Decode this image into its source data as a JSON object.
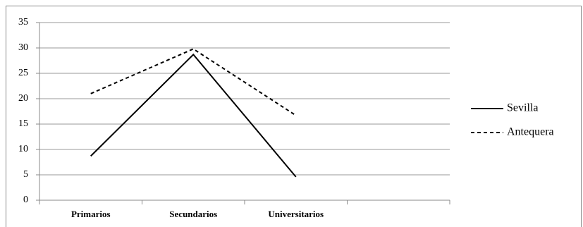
{
  "chart_data": {
    "type": "line",
    "categories": [
      "Primarios",
      "Secundarios",
      "Universitarios",
      null
    ],
    "series": [
      {
        "name": "Sevilla",
        "color": "#000000",
        "line_style": "solid",
        "values": [
          8.7,
          28.7,
          4.6,
          null
        ]
      },
      {
        "name": "Antequera",
        "color": "#000000",
        "line_style": "dashed",
        "values": [
          21,
          29.8,
          16.7,
          null
        ]
      }
    ],
    "ylim": [
      0,
      35
    ],
    "yticks": [
      0,
      5,
      10,
      15,
      20,
      25,
      30,
      35
    ],
    "grid": true,
    "legend": "right"
  }
}
